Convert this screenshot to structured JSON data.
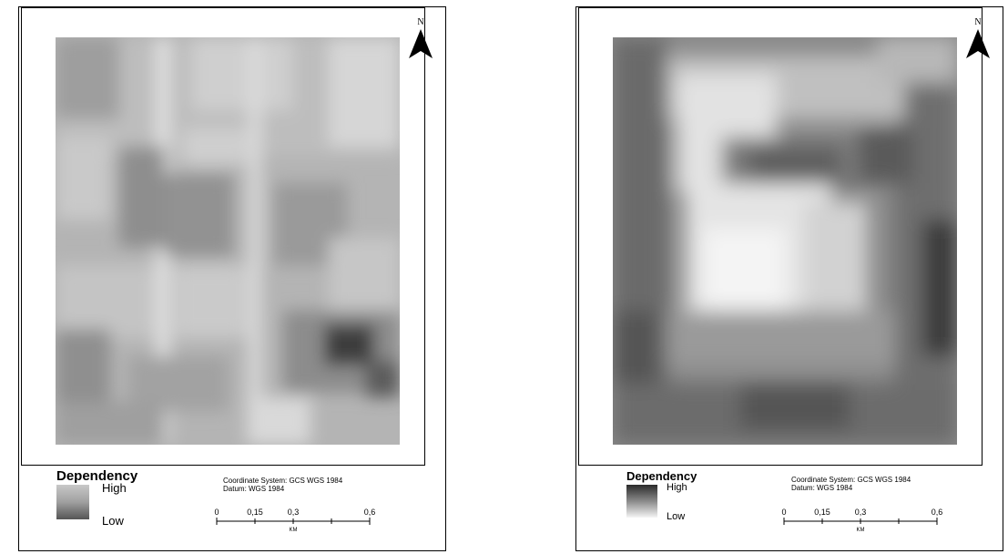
{
  "maps": [
    {
      "north_label": "N",
      "legend": {
        "title": "Dependency",
        "high_label": "High",
        "low_label": "Low",
        "high_color": "#c8c8c8",
        "low_color": "#555555"
      },
      "coordinate_system": "Coordinate System: GCS WGS 1984",
      "datum": "Datum: WGS 1984",
      "scale": {
        "ticks": [
          "0",
          "0,15",
          "0,3",
          "0,6"
        ],
        "unit": "KM"
      }
    },
    {
      "north_label": "N",
      "legend": {
        "title": "Dependency",
        "high_label": "High",
        "low_label": "Low",
        "high_color": "#2a2a2a",
        "low_color": "#f5f5f5"
      },
      "coordinate_system": "Coordinate System: GCS WGS 1984",
      "datum": "Datum: WGS 1984",
      "scale": {
        "ticks": [
          "0",
          "0,15",
          "0,3",
          "0,6"
        ],
        "unit": "KM"
      }
    }
  ]
}
